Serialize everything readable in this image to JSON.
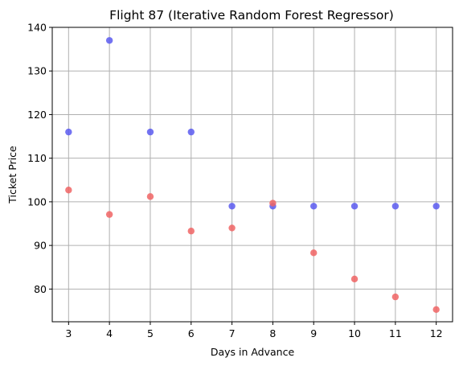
{
  "chart_data": {
    "type": "scatter",
    "title": "Flight 87 (Iterative Random Forest Regressor)",
    "xlabel": "Days in Advance",
    "ylabel": "Ticket Price",
    "xlim": [
      2.6,
      12.4
    ],
    "ylim": [
      72.5,
      140
    ],
    "xticks": [
      3,
      4,
      5,
      6,
      7,
      8,
      9,
      10,
      11,
      12
    ],
    "yticks": [
      80,
      90,
      100,
      110,
      120,
      130,
      140
    ],
    "grid": true,
    "series": [
      {
        "color": "#5b5bf0",
        "x": [
          3,
          4,
          5,
          6,
          7,
          8,
          9,
          10,
          11,
          12
        ],
        "y": [
          116,
          137,
          116,
          116,
          99,
          99,
          99,
          99,
          99,
          99
        ]
      },
      {
        "color": "#f06464",
        "x": [
          3,
          4,
          5,
          6,
          7,
          8,
          9,
          10,
          11,
          12
        ],
        "y": [
          102.7,
          97.1,
          101.2,
          93.3,
          94.0,
          99.7,
          88.3,
          82.3,
          78.2,
          75.3
        ]
      }
    ]
  }
}
